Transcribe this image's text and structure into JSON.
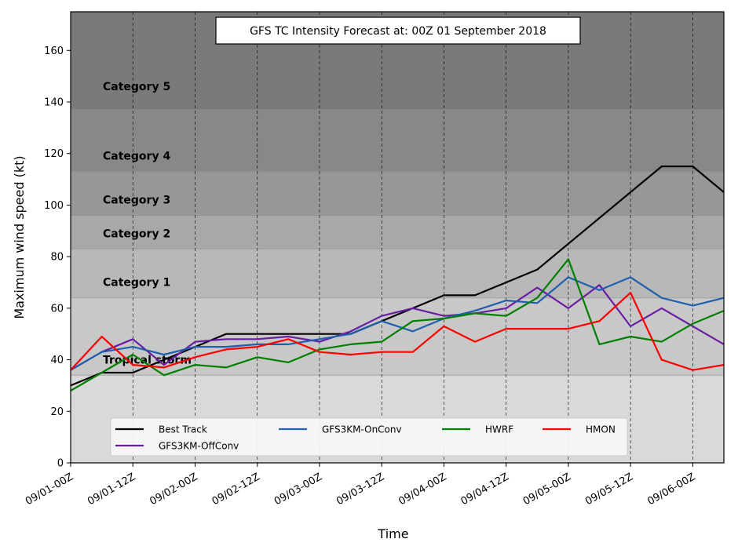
{
  "chart_data": {
    "type": "line",
    "title": "GFS TC Intensity Forecast at: 00Z 01 September 2018",
    "xlabel": "Time",
    "ylabel": "Maximum wind speed (kt)",
    "ylim": [
      0,
      175
    ],
    "yticks": [
      0,
      20,
      40,
      60,
      80,
      100,
      120,
      140,
      160
    ],
    "x": [
      "09/01-00Z",
      "09/01-06Z",
      "09/01-12Z",
      "09/01-18Z",
      "09/02-00Z",
      "09/02-06Z",
      "09/02-12Z",
      "09/02-18Z",
      "09/03-00Z",
      "09/03-06Z",
      "09/03-12Z",
      "09/03-18Z",
      "09/04-00Z",
      "09/04-06Z",
      "09/04-12Z",
      "09/04-18Z",
      "09/05-00Z",
      "09/05-06Z",
      "09/05-12Z",
      "09/05-18Z",
      "09/06-00Z",
      "09/06-06Z"
    ],
    "xtick_labels": [
      "09/01-00Z",
      "09/01-12Z",
      "09/02-00Z",
      "09/02-12Z",
      "09/03-00Z",
      "09/03-12Z",
      "09/04-00Z",
      "09/04-12Z",
      "09/05-00Z",
      "09/05-12Z",
      "09/06-00Z"
    ],
    "grid": "vertical-dashed",
    "legend_placement": "lower-center",
    "bands": [
      {
        "label": "Tropical storm",
        "from": 34,
        "to": 64,
        "color": "#c8c8c8"
      },
      {
        "label": "Category 1",
        "from": 64,
        "to": 83,
        "color": "#b8b8b8"
      },
      {
        "label": "Category 2",
        "from": 83,
        "to": 96,
        "color": "#a8a8a8"
      },
      {
        "label": "Category 3",
        "from": 96,
        "to": 113,
        "color": "#979797"
      },
      {
        "label": "Category 4",
        "from": 113,
        "to": 137,
        "color": "#888888"
      },
      {
        "label": "Category 5",
        "from": 137,
        "to": 175,
        "color": "#7a7a7a"
      }
    ],
    "below_band_color": "#d9d9d9",
    "series": [
      {
        "name": "Best Track",
        "color": "#000000",
        "values": [
          30,
          35,
          35,
          40,
          45,
          50,
          50,
          50,
          50,
          50,
          55,
          60,
          65,
          65,
          70,
          75,
          85,
          95,
          105,
          115,
          115,
          105
        ]
      },
      {
        "name": "GFS3KM-OffConv",
        "color": "#6a1ea3",
        "values": [
          36,
          43,
          48,
          38,
          47,
          48,
          48,
          49,
          47,
          51,
          57,
          60,
          57,
          58,
          60,
          68,
          60,
          69,
          53,
          60,
          53,
          46
        ]
      },
      {
        "name": "GFS3KM-OnConv",
        "color": "#1f5fae",
        "values": [
          36,
          43,
          45,
          42,
          45,
          45,
          46,
          46,
          48,
          50,
          55,
          51,
          56,
          59,
          63,
          62,
          72,
          67,
          72,
          64,
          61,
          64
        ]
      },
      {
        "name": "HWRF",
        "color": "#008000",
        "values": [
          28,
          35,
          42,
          34,
          38,
          37,
          41,
          39,
          44,
          46,
          47,
          55,
          56,
          58,
          57,
          64,
          79,
          46,
          49,
          47,
          54,
          59
        ]
      },
      {
        "name": "HMON",
        "color": "#ff0000",
        "values": [
          36,
          49,
          38,
          37,
          41,
          44,
          45,
          48,
          43,
          42,
          43,
          43,
          53,
          47,
          52,
          52,
          52,
          55,
          66,
          40,
          36,
          38
        ]
      }
    ]
  }
}
